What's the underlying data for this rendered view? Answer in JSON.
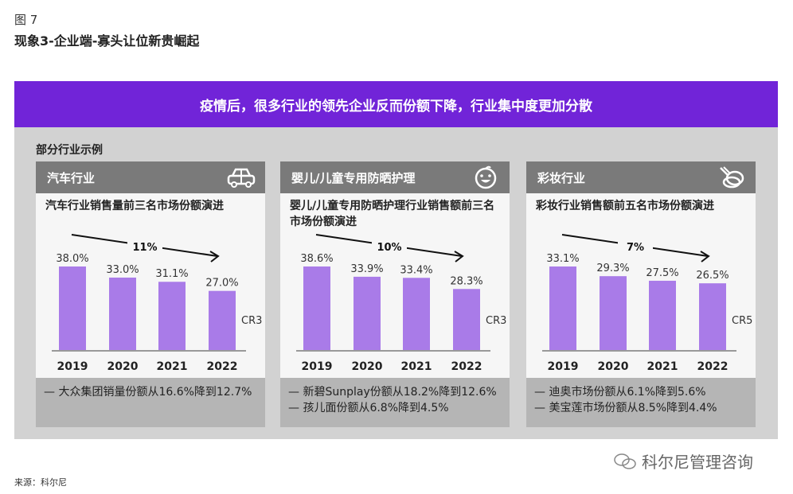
{
  "figure_number": "图 7",
  "figure_title": "现象3-企业端-寡头让位新贵崛起",
  "banner": "疫情后，很多行业的领先企业反而份额下降，行业集中度更加分散",
  "panel_label": "部分行业示例",
  "bar_color": "#a97be8",
  "banner_color": "#7124d8",
  "chart_data": [
    {
      "type": "bar",
      "industry": "汽车行业",
      "icon": "car-icon",
      "title": "汽车行业销售量前三名市场份额演进",
      "categories": [
        "2019",
        "2020",
        "2021",
        "2022"
      ],
      "values": [
        38.0,
        33.0,
        31.1,
        27.0
      ],
      "value_labels": [
        "38.0%",
        "33.0%",
        "31.1%",
        "27.0%"
      ],
      "series_label": "CR3",
      "trend_label": "11%",
      "notes": [
        "— 大众集团销量份额从16.6%降到12.7%"
      ]
    },
    {
      "type": "bar",
      "industry": "婴儿/儿童专用防晒护理",
      "icon": "baby-face-icon",
      "title": "婴儿/儿童专用防晒护理行业销售额前三名市场份额演进",
      "categories": [
        "2019",
        "2020",
        "2021",
        "2022"
      ],
      "values": [
        38.6,
        33.9,
        33.4,
        28.3
      ],
      "value_labels": [
        "38.6%",
        "33.9%",
        "33.4%",
        "28.3%"
      ],
      "series_label": "CR3",
      "trend_label": "10%",
      "notes": [
        "— 新碧Sunplay份额从18.2%降到12.6%",
        "— 孩儿面份额从6.8%降到4.5%"
      ]
    },
    {
      "type": "bar",
      "industry": "彩妆行业",
      "icon": "makeup-compact-icon",
      "title": "彩妆行业销售额前五名市场份额演进",
      "categories": [
        "2019",
        "2020",
        "2021",
        "2022"
      ],
      "values": [
        33.1,
        29.3,
        27.5,
        26.5
      ],
      "value_labels": [
        "33.1%",
        "29.3%",
        "27.5%",
        "26.5%"
      ],
      "series_label": "CR5",
      "trend_label": "7%",
      "notes": [
        "— 迪奥市场份额从6.1%降到5.6%",
        "— 美宝莲市场份额从8.5%降到4.4%"
      ]
    }
  ],
  "source": "来源：科尔尼",
  "watermark": "科尔尼管理咨询"
}
